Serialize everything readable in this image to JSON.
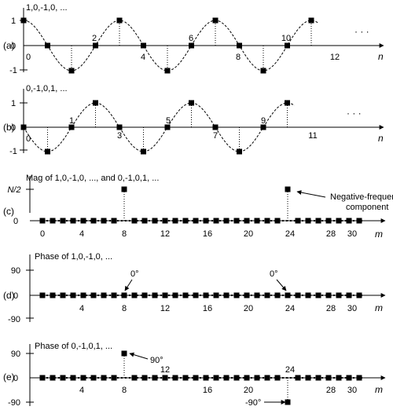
{
  "chart_data": [
    {
      "type": "scatter",
      "panel_label": "(a)",
      "caption": "1,0,-1,0, ...",
      "xlabel": "n",
      "x_tick_labels": [
        "0",
        "2",
        "4",
        "6",
        "8",
        "10",
        "12"
      ],
      "y_tick_labels": [
        "1",
        "0",
        "-1"
      ],
      "ylim": [
        -1,
        1
      ],
      "x": [
        0,
        1,
        2,
        3,
        4,
        5,
        6,
        7,
        8,
        9,
        10,
        11,
        12
      ],
      "values": [
        1,
        0,
        -1,
        0,
        1,
        0,
        -1,
        0,
        1,
        0,
        -1,
        0,
        1
      ],
      "continuation": "· · ·"
    },
    {
      "type": "scatter",
      "panel_label": "(b)",
      "caption": "0,-1,0,1, ...",
      "xlabel": "n",
      "x_tick_labels": [
        "0",
        "1",
        "3",
        "5",
        "7",
        "9",
        "11"
      ],
      "y_tick_labels": [
        "1",
        "0",
        "-1"
      ],
      "ylim": [
        -1,
        1
      ],
      "x": [
        0,
        1,
        2,
        3,
        4,
        5,
        6,
        7,
        8,
        9,
        10,
        11
      ],
      "values": [
        0,
        -1,
        0,
        1,
        0,
        -1,
        0,
        1,
        0,
        -1,
        0,
        1
      ],
      "continuation": "· · ·"
    },
    {
      "type": "scatter",
      "panel_label": "(c)",
      "caption": "Mag of 1,0,-1,0, ..., and 0,-1,0,1, ...",
      "xlabel": "m",
      "x_tick_labels": [
        "0",
        "4",
        "8",
        "12",
        "16",
        "20",
        "24",
        "28",
        "30"
      ],
      "y_tick_labels": [
        "N/2",
        "0"
      ],
      "ylim": [
        0,
        1
      ],
      "x": [
        0,
        1,
        2,
        3,
        4,
        5,
        6,
        7,
        8,
        9,
        10,
        11,
        12,
        13,
        14,
        15,
        16,
        17,
        18,
        19,
        20,
        21,
        22,
        23,
        24,
        25,
        26,
        27,
        28,
        29,
        30,
        31
      ],
      "values": [
        0,
        0,
        0,
        0,
        0,
        0,
        0,
        0,
        1,
        0,
        0,
        0,
        0,
        0,
        0,
        0,
        0,
        0,
        0,
        0,
        0,
        0,
        0,
        0,
        1,
        0,
        0,
        0,
        0,
        0,
        0,
        0
      ],
      "annotations": [
        "Negative-frequency",
        "component"
      ]
    },
    {
      "type": "scatter",
      "panel_label": "(d)",
      "caption": "Phase of 1,0,-1,0, ...",
      "xlabel": "m",
      "x_tick_labels": [
        "4",
        "8",
        "12",
        "16",
        "20",
        "24",
        "28",
        "30"
      ],
      "y_tick_labels": [
        "90",
        "0",
        "-90"
      ],
      "ylim": [
        -90,
        90
      ],
      "x": [
        0,
        1,
        2,
        3,
        4,
        5,
        6,
        7,
        8,
        9,
        10,
        11,
        12,
        13,
        14,
        15,
        16,
        17,
        18,
        19,
        20,
        21,
        22,
        23,
        24,
        25,
        26,
        27,
        28,
        29,
        30,
        31
      ],
      "values": [
        0,
        0,
        0,
        0,
        0,
        0,
        0,
        0,
        0,
        0,
        0,
        0,
        0,
        0,
        0,
        0,
        0,
        0,
        0,
        0,
        0,
        0,
        0,
        0,
        0,
        0,
        0,
        0,
        0,
        0,
        0,
        0
      ],
      "annotations": [
        "0°",
        "0°"
      ]
    },
    {
      "type": "scatter",
      "panel_label": "(e)",
      "caption": "Phase of 0,-1,0,1, ...",
      "xlabel": "m",
      "x_tick_labels": [
        "4",
        "8",
        "12",
        "16",
        "20",
        "24",
        "28",
        "30"
      ],
      "y_tick_labels": [
        "90",
        "0",
        "-90"
      ],
      "ylim": [
        -90,
        90
      ],
      "x": [
        0,
        1,
        2,
        3,
        4,
        5,
        6,
        7,
        8,
        9,
        10,
        11,
        12,
        13,
        14,
        15,
        16,
        17,
        18,
        19,
        20,
        21,
        22,
        23,
        24,
        25,
        26,
        27,
        28,
        29,
        30,
        31
      ],
      "values": [
        0,
        0,
        0,
        0,
        0,
        0,
        0,
        0,
        90,
        0,
        0,
        0,
        0,
        0,
        0,
        0,
        0,
        0,
        0,
        0,
        0,
        0,
        0,
        0,
        -90,
        0,
        0,
        0,
        0,
        0,
        0,
        0
      ],
      "annotations": [
        "90°",
        "-90°"
      ]
    }
  ]
}
